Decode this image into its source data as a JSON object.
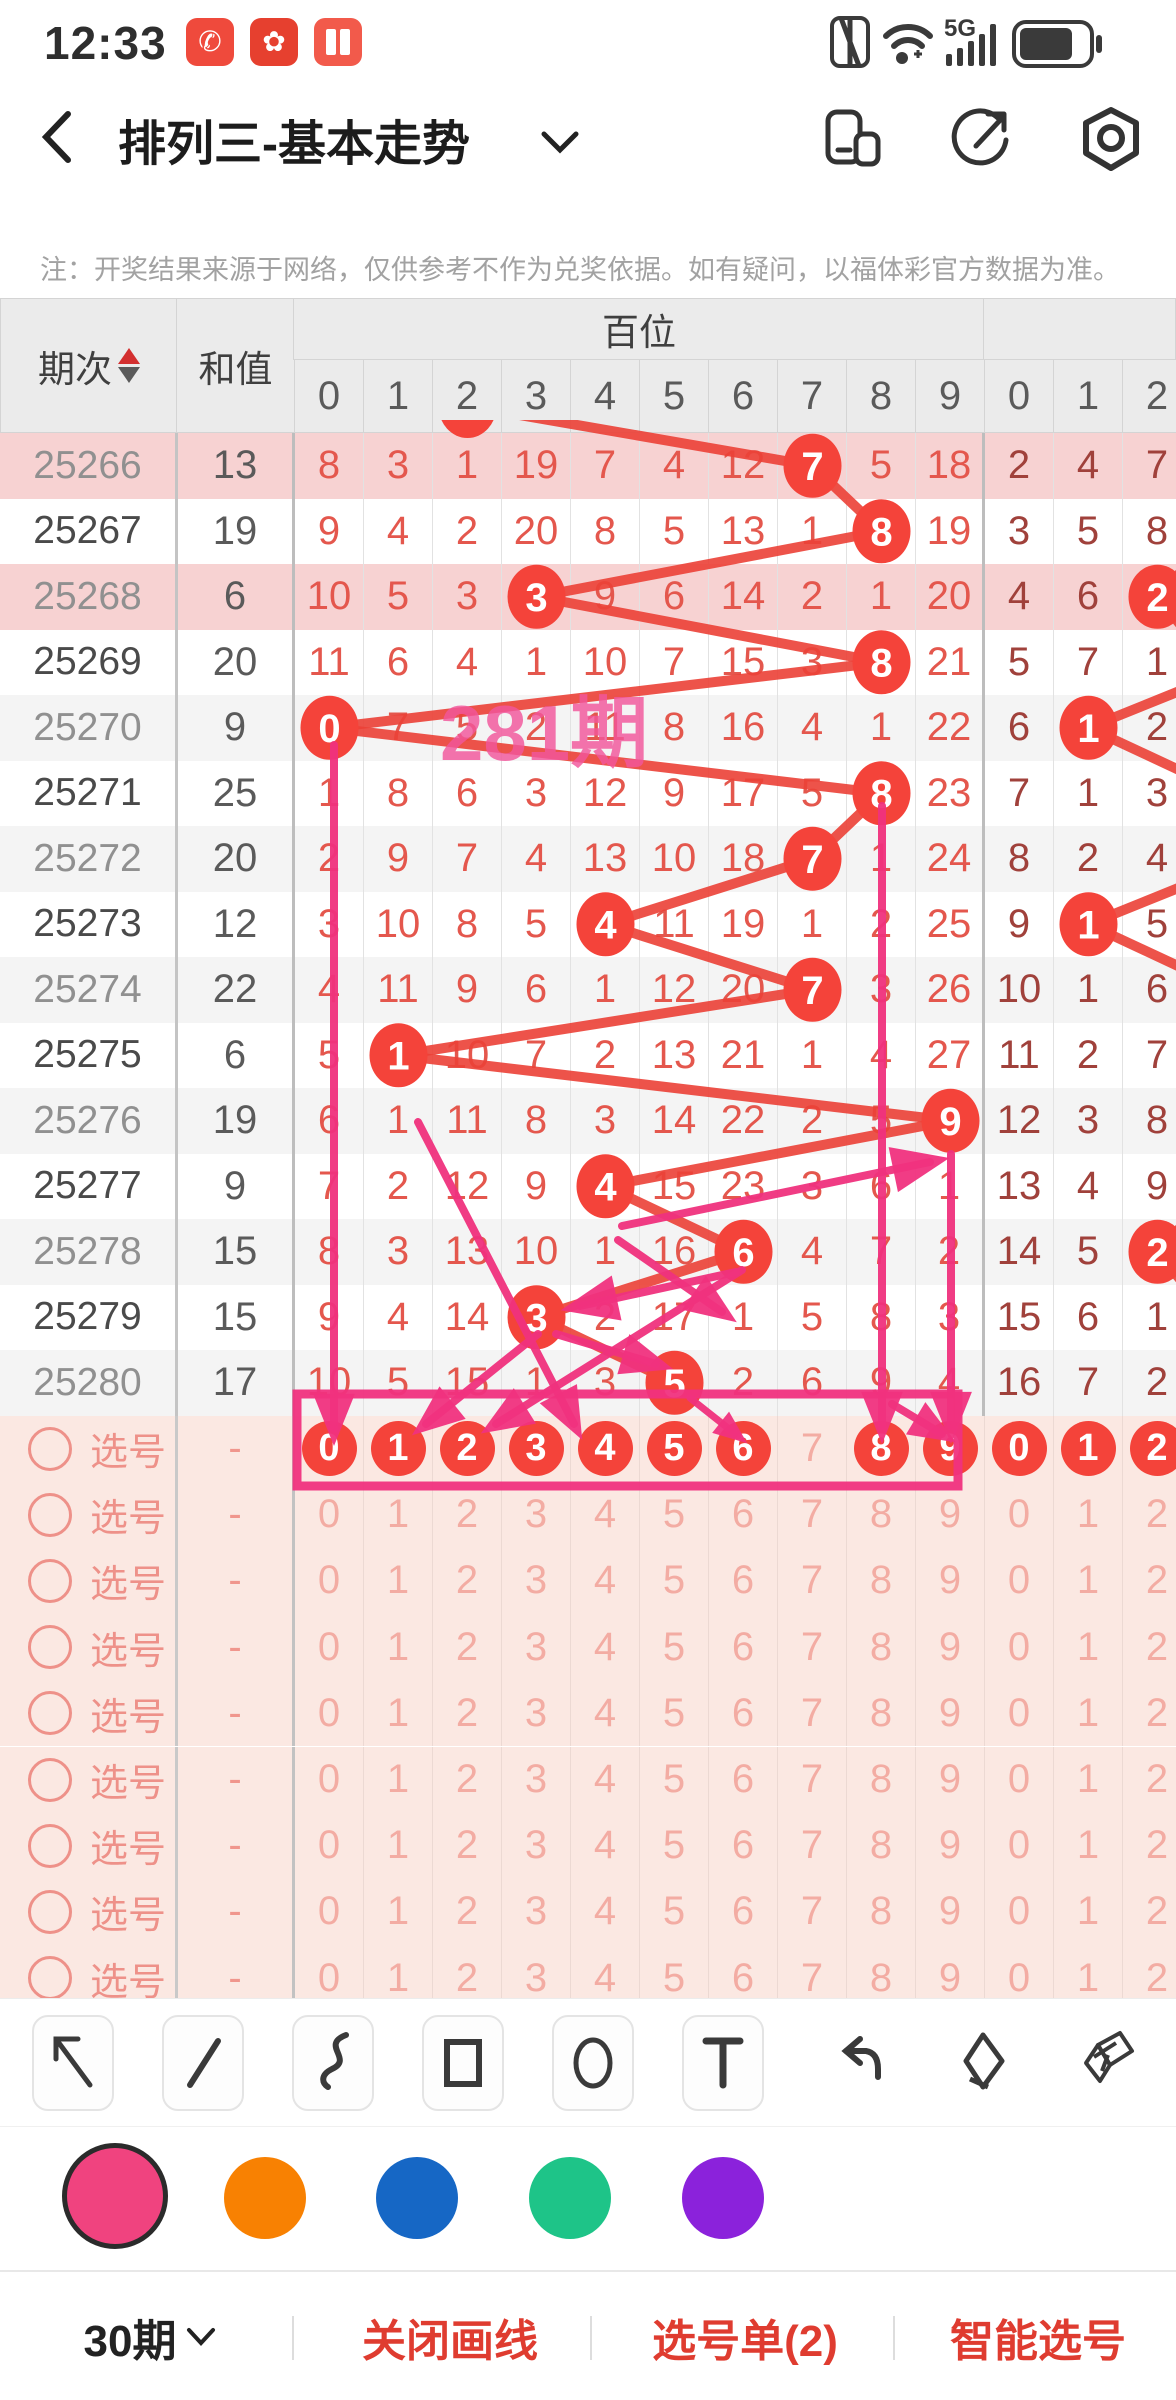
{
  "status_bar": {
    "time": "12:33",
    "network": "5G"
  },
  "nav": {
    "title": "排列三-基本走势"
  },
  "notice": "注：开奖结果来源于网络，仅供参考不作为兑奖依据。如有疑问，以福体彩官方数据为准。",
  "table": {
    "col_period": "期次",
    "col_sum": "和值",
    "group1_label": "百位",
    "digit_headers": [
      "0",
      "1",
      "2",
      "3",
      "4",
      "5",
      "6",
      "7",
      "8",
      "9"
    ],
    "tens_headers": [
      "0",
      "1",
      "2"
    ],
    "rows": [
      {
        "period": "25266",
        "sum": "13",
        "h": [
          "8",
          "3",
          "1",
          "19",
          "7",
          "4",
          "12",
          null,
          "5",
          "18"
        ],
        "win": 7,
        "t": [
          "2",
          "4",
          "7"
        ],
        "twin": null
      },
      {
        "period": "25267",
        "sum": "19",
        "h": [
          "9",
          "4",
          "2",
          "20",
          "8",
          "5",
          "13",
          "1",
          null,
          "19"
        ],
        "win": 8,
        "t": [
          "3",
          "5",
          "8"
        ],
        "twin": null
      },
      {
        "period": "25268",
        "sum": "6",
        "h": [
          "10",
          "5",
          "3",
          null,
          "9",
          "6",
          "14",
          "2",
          "1",
          "20"
        ],
        "win": 3,
        "t": [
          "4",
          "6",
          null
        ],
        "twin": 2
      },
      {
        "period": "25269",
        "sum": "20",
        "h": [
          "11",
          "6",
          "4",
          "1",
          "10",
          "7",
          "15",
          "3",
          null,
          "21"
        ],
        "win": 8,
        "t": [
          "5",
          "7",
          "1"
        ],
        "twin": null
      },
      {
        "period": "25270",
        "sum": "9",
        "h": [
          null,
          "7",
          "5",
          "2",
          "11",
          "8",
          "16",
          "4",
          "1",
          "22"
        ],
        "win": 0,
        "t": [
          "6",
          null,
          "2"
        ],
        "twin": 1
      },
      {
        "period": "25271",
        "sum": "25",
        "h": [
          "1",
          "8",
          "6",
          "3",
          "12",
          "9",
          "17",
          "5",
          null,
          "23"
        ],
        "win": 8,
        "t": [
          "7",
          "1",
          "3"
        ],
        "twin": null
      },
      {
        "period": "25272",
        "sum": "20",
        "h": [
          "2",
          "9",
          "7",
          "4",
          "13",
          "10",
          "18",
          null,
          "1",
          "24"
        ],
        "win": 7,
        "t": [
          "8",
          "2",
          "4"
        ],
        "twin": null
      },
      {
        "period": "25273",
        "sum": "12",
        "h": [
          "3",
          "10",
          "8",
          "5",
          null,
          "11",
          "19",
          "1",
          "2",
          "25"
        ],
        "win": 4,
        "t": [
          "9",
          null,
          "5"
        ],
        "twin": 1
      },
      {
        "period": "25274",
        "sum": "22",
        "h": [
          "4",
          "11",
          "9",
          "6",
          "1",
          "12",
          "20",
          null,
          "3",
          "26"
        ],
        "win": 7,
        "t": [
          "10",
          "1",
          "6"
        ],
        "twin": null
      },
      {
        "period": "25275",
        "sum": "6",
        "h": [
          "5",
          null,
          "10",
          "7",
          "2",
          "13",
          "21",
          "1",
          "4",
          "27"
        ],
        "win": 1,
        "t": [
          "11",
          "2",
          "7"
        ],
        "twin": null
      },
      {
        "period": "25276",
        "sum": "19",
        "h": [
          "6",
          "1",
          "11",
          "8",
          "3",
          "14",
          "22",
          "2",
          "5",
          null
        ],
        "win": 9,
        "t": [
          "12",
          "3",
          "8"
        ],
        "twin": null
      },
      {
        "period": "25277",
        "sum": "9",
        "h": [
          "7",
          "2",
          "12",
          "9",
          null,
          "15",
          "23",
          "3",
          "6",
          "1"
        ],
        "win": 4,
        "t": [
          "13",
          "4",
          "9"
        ],
        "twin": null
      },
      {
        "period": "25278",
        "sum": "15",
        "h": [
          "8",
          "3",
          "13",
          "10",
          "1",
          "16",
          null,
          "4",
          "7",
          "2"
        ],
        "win": 6,
        "t": [
          "14",
          "5",
          null
        ],
        "twin": 2
      },
      {
        "period": "25279",
        "sum": "15",
        "h": [
          "9",
          "4",
          "14",
          null,
          "2",
          "17",
          "1",
          "5",
          "8",
          "3"
        ],
        "win": 3,
        "t": [
          "15",
          "6",
          "1"
        ],
        "twin": null
      },
      {
        "period": "25280",
        "sum": "17",
        "h": [
          "10",
          "5",
          "15",
          "1",
          "3",
          null,
          "2",
          "6",
          "9",
          "4"
        ],
        "win": 5,
        "t": [
          "16",
          "7",
          "2"
        ],
        "twin": null
      }
    ],
    "pick_label": "选号",
    "pick_dash": "-",
    "pick_row_count": 9,
    "pick_digits": [
      "0",
      "1",
      "2",
      "3",
      "4",
      "5",
      "6",
      "7",
      "8",
      "9"
    ],
    "pick_tens": [
      "0",
      "1",
      "2"
    ],
    "selected_hundreds": [
      0,
      1,
      2,
      3,
      4,
      5,
      6,
      8,
      9
    ],
    "selected_tens": [
      0,
      1,
      2
    ]
  },
  "annotation": {
    "text": "281期",
    "pen_color": "#f0327e"
  },
  "chart_colors": {
    "circle_red": "#f4433a",
    "line_red": "#ec4137",
    "highlight_row": "#f7d2d2"
  },
  "toolbar": {
    "tools": [
      "arrow-tool",
      "line-tool",
      "curve-tool",
      "rect-tool",
      "ellipse-tool",
      "text-tool",
      "undo",
      "eraser",
      "clear-eraser"
    ]
  },
  "palette": {
    "selected": "pink",
    "colors": [
      {
        "name": "pink",
        "hex": "#f0437f"
      },
      {
        "name": "orange",
        "hex": "#f88102"
      },
      {
        "name": "blue",
        "hex": "#1667c5"
      },
      {
        "name": "green",
        "hex": "#1ec488"
      },
      {
        "name": "purple",
        "hex": "#8b22db"
      }
    ]
  },
  "bottom_bar": {
    "periods": "30期",
    "close_draw": "关闭画线",
    "pick_list": "选号单(2)",
    "smart_pick": "智能选号"
  }
}
